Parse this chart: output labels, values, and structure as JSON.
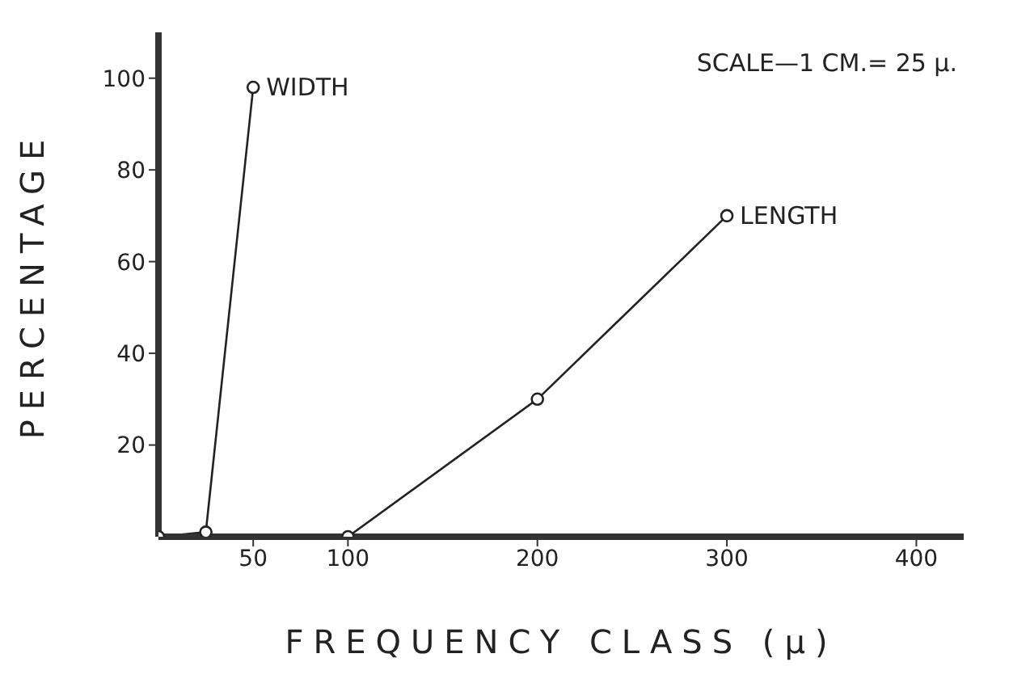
{
  "chart_data": {
    "type": "line",
    "xlabel": "FREQUENCY CLASS (μ)",
    "ylabel": "PERCENTAGE",
    "annotations": [
      "SCALE—1 CM.= 25 μ."
    ],
    "series": [
      {
        "name": "WIDTH",
        "color": "#222222",
        "x": [
          0,
          25,
          50
        ],
        "values": [
          0,
          1,
          98
        ]
      },
      {
        "name": "LENGTH",
        "color": "#222222",
        "x": [
          100,
          200,
          300
        ],
        "values": [
          0,
          30,
          70
        ]
      }
    ],
    "xlim": [
      0,
      425
    ],
    "xticks": [
      50,
      100,
      200,
      300,
      400
    ],
    "ylim": [
      0,
      110
    ],
    "yticks": [
      20,
      40,
      60,
      80,
      100
    ],
    "grid": false,
    "legend": false,
    "marker": "circle",
    "line_style": "solid"
  }
}
